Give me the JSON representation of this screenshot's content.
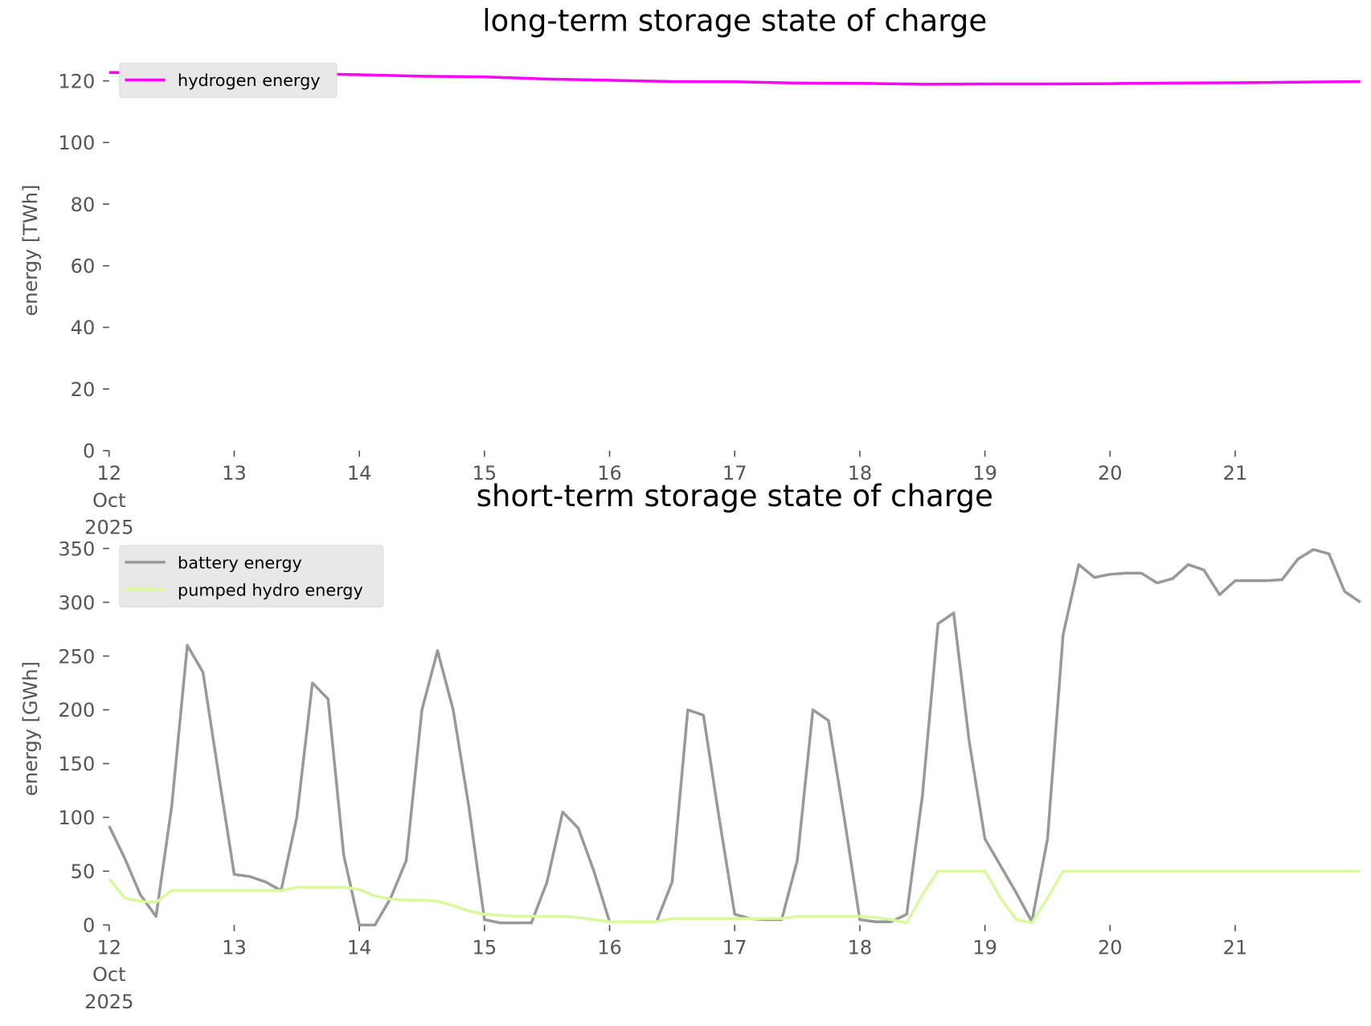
{
  "chart_data": [
    {
      "type": "line",
      "title": "long-term storage state of charge",
      "ylabel": "energy [TWh]",
      "x": [
        12,
        12.5,
        13,
        13.5,
        14,
        14.5,
        15,
        15.5,
        16,
        16.5,
        17,
        17.5,
        18,
        18.5,
        19,
        19.5,
        20,
        20.5,
        21,
        21.5,
        22
      ],
      "xlim": [
        12,
        22
      ],
      "xticks": [
        {
          "value": 12,
          "label": "12\nOct\n2025"
        },
        13,
        14,
        15,
        16,
        17,
        18,
        19,
        20,
        21
      ],
      "ylim": [
        0,
        130
      ],
      "yticks": [
        0,
        20,
        40,
        60,
        80,
        100,
        120
      ],
      "legend": "upper left",
      "grid": false,
      "series": [
        {
          "name": "hydrogen energy",
          "color": "#ff00ff",
          "values": [
            122.7,
            122.6,
            122.6,
            122.4,
            122.0,
            121.5,
            121.3,
            120.6,
            120.2,
            119.8,
            119.7,
            119.3,
            119.2,
            118.9,
            119.0,
            119.0,
            119.1,
            119.3,
            119.4,
            119.6,
            119.8
          ]
        }
      ]
    },
    {
      "type": "line",
      "title": "short-term storage state of charge",
      "ylabel": "energy [GWh]",
      "x": [
        12,
        12.125,
        12.25,
        12.375,
        12.5,
        12.625,
        12.75,
        12.875,
        13,
        13.125,
        13.25,
        13.375,
        13.5,
        13.625,
        13.75,
        13.875,
        14,
        14.125,
        14.25,
        14.375,
        14.5,
        14.625,
        14.75,
        14.875,
        15,
        15.125,
        15.25,
        15.375,
        15.5,
        15.625,
        15.75,
        15.875,
        16,
        16.125,
        16.25,
        16.375,
        16.5,
        16.625,
        16.75,
        16.875,
        17,
        17.125,
        17.25,
        17.375,
        17.5,
        17.625,
        17.75,
        17.875,
        18,
        18.125,
        18.25,
        18.375,
        18.5,
        18.625,
        18.75,
        18.875,
        19,
        19.125,
        19.25,
        19.375,
        19.5,
        19.625,
        19.75,
        19.875,
        20,
        20.125,
        20.25,
        20.375,
        20.5,
        20.625,
        20.75,
        20.875,
        21,
        21.125,
        21.25,
        21.375,
        21.5,
        21.625,
        21.75,
        21.875,
        22
      ],
      "xlim": [
        12,
        22
      ],
      "xticks": [
        {
          "value": 12,
          "label": "12\nOct\n2025"
        },
        13,
        14,
        15,
        16,
        17,
        18,
        19,
        20,
        21
      ],
      "ylim": [
        0,
        365
      ],
      "yticks": [
        0,
        50,
        100,
        150,
        200,
        250,
        300,
        350
      ],
      "legend": "upper left",
      "grid": false,
      "series": [
        {
          "name": "battery energy",
          "color": "#999999",
          "values": [
            92,
            62,
            28,
            8,
            110,
            260,
            235,
            140,
            47,
            45,
            40,
            32,
            100,
            225,
            210,
            65,
            0,
            0,
            25,
            60,
            200,
            255,
            200,
            110,
            5,
            2,
            2,
            2,
            40,
            105,
            90,
            50,
            3,
            3,
            3,
            3,
            40,
            200,
            195,
            100,
            10,
            6,
            5,
            5,
            60,
            200,
            190,
            100,
            5,
            3,
            3,
            10,
            120,
            280,
            290,
            170,
            80,
            55,
            30,
            3,
            80,
            270,
            335,
            323,
            326,
            327,
            327,
            318,
            322,
            335,
            330,
            307,
            320,
            320,
            320,
            321,
            340,
            349,
            345,
            310,
            300
          ]
        },
        {
          "name": "pumped hydro energy",
          "color": "#d9f99d",
          "values": [
            43,
            25,
            22,
            21,
            32,
            32,
            32,
            32,
            32,
            32,
            32,
            32,
            35,
            35,
            35,
            35,
            33,
            27,
            24,
            23,
            23,
            22,
            18,
            13,
            10,
            9,
            8,
            8,
            8,
            8,
            7,
            5,
            3,
            3,
            3,
            3,
            6,
            6,
            6,
            6,
            6,
            6,
            6,
            6,
            8,
            8,
            8,
            8,
            8,
            7,
            5,
            2,
            28,
            50,
            50,
            50,
            50,
            25,
            5,
            2,
            25,
            50,
            50,
            50,
            50,
            50,
            50,
            50,
            50,
            50,
            50,
            50,
            50,
            50,
            50,
            50,
            50,
            50,
            50,
            50,
            50
          ]
        }
      ]
    }
  ]
}
